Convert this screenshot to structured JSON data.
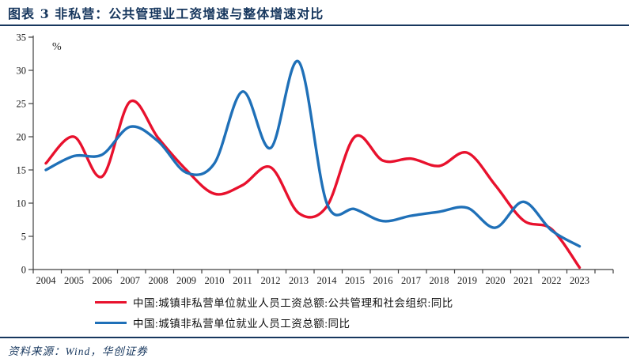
{
  "header": {
    "title": "图表 3  非私营：公共管理业工资增速与整体增速对比"
  },
  "footer": {
    "source": "资料来源：Wind，华创证券"
  },
  "colors": {
    "accent_navy": "#17375E",
    "axis": "#404040",
    "tick_label": "#1a1a1a"
  },
  "chart_data": {
    "type": "line",
    "title": "非私营：公共管理业工资增速与整体增速对比",
    "unit_label": "%",
    "xlabel": "",
    "ylabel": "%",
    "ylim": [
      0,
      35
    ],
    "ytick_step": 5,
    "grid": false,
    "legend_position": "bottom",
    "x": [
      2004,
      2005,
      2006,
      2007,
      2008,
      2009,
      2010,
      2011,
      2012,
      2013,
      2014,
      2015,
      2016,
      2017,
      2018,
      2019,
      2020,
      2021,
      2022,
      2023
    ],
    "series": [
      {
        "name": "中国:城镇非私营单位就业人员工资总额:公共管理和社会组织:同比",
        "color": "#E8112D",
        "values": [
          16.0,
          20.0,
          14.0,
          25.3,
          19.8,
          15.0,
          11.4,
          12.7,
          15.4,
          8.5,
          9.5,
          20.0,
          16.4,
          16.7,
          15.6,
          17.6,
          12.7,
          7.4,
          6.1,
          0.3
        ]
      },
      {
        "name": "中国:城镇非私营单位就业人员工资总额:同比",
        "color": "#1F70B8",
        "values": [
          15.0,
          17.1,
          17.3,
          21.5,
          19.3,
          14.6,
          16.0,
          26.8,
          18.3,
          31.3,
          10.0,
          9.1,
          7.3,
          8.1,
          8.7,
          9.3,
          6.3,
          10.2,
          5.9,
          3.5
        ]
      }
    ]
  }
}
